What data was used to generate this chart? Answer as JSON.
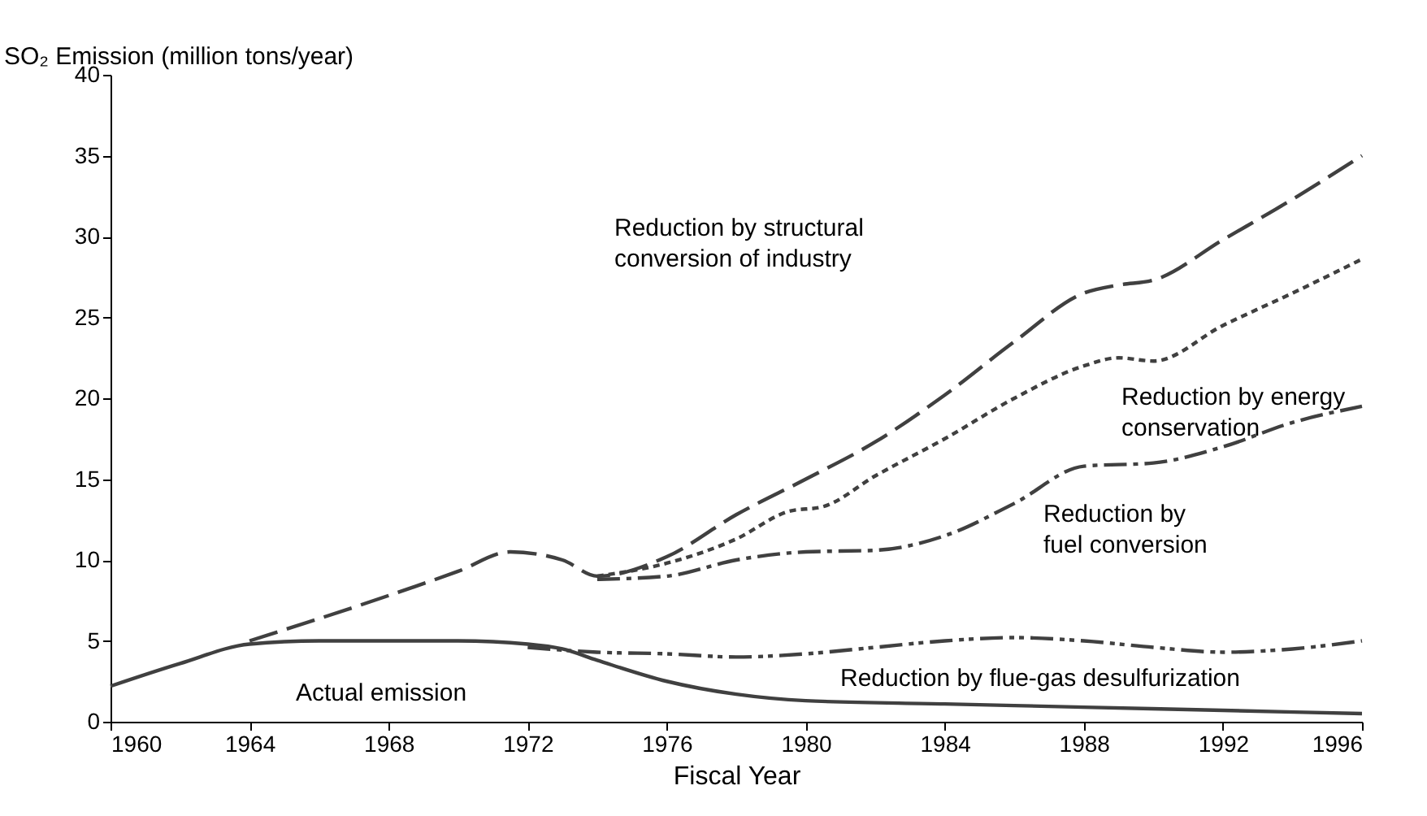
{
  "chart_data": {
    "type": "line",
    "ylabel": "SO₂ Emission (million tons/year)",
    "xlabel": "Fiscal Year",
    "xlim": [
      1960,
      1996
    ],
    "xticks": [
      1960,
      1964,
      1968,
      1972,
      1976,
      1980,
      1984,
      1988,
      1992,
      1996
    ],
    "ylim": [
      0,
      40
    ],
    "yticks": [
      0,
      5,
      10,
      15,
      20,
      25,
      30,
      35,
      40
    ],
    "grid": false,
    "marker": "none",
    "series": [
      {
        "color": "#404040",
        "line_style": "dashed",
        "x": [
          1964,
          1968,
          1970,
          1971.5,
          1973,
          1974,
          1976,
          1978,
          1980,
          1982,
          1984,
          1986,
          1988,
          1989,
          1990,
          1992,
          1994,
          1996
        ],
        "values": [
          5.0,
          7.8,
          9.3,
          10.5,
          10.0,
          9.0,
          10.2,
          12.8,
          15.0,
          17.3,
          20.2,
          23.5,
          26.5,
          27.0,
          27.3,
          29.8,
          32.3,
          35.0
        ]
      },
      {
        "color": "#404040",
        "line_style": "dotted",
        "x": [
          1974,
          1976,
          1978,
          1979.5,
          1980.5,
          1982,
          1984,
          1986,
          1988,
          1989,
          1990,
          1992,
          1994,
          1996
        ],
        "values": [
          9.0,
          9.8,
          11.3,
          13.0,
          13.3,
          15.2,
          17.5,
          20.0,
          22.0,
          22.5,
          22.3,
          24.5,
          26.5,
          28.6
        ]
      },
      {
        "color": "#404040",
        "line_style": "dashdot",
        "x": [
          1974,
          1976,
          1978,
          1980,
          1982,
          1984,
          1986,
          1988,
          1990,
          1992,
          1994,
          1996
        ],
        "values": [
          8.8,
          9.0,
          10.0,
          10.5,
          10.6,
          11.5,
          13.5,
          15.8,
          16.0,
          17.0,
          18.5,
          19.5
        ]
      },
      {
        "color": "#404040",
        "line_style": "dashdotdot",
        "x": [
          1972,
          1974,
          1976,
          1978,
          1980,
          1982,
          1984,
          1986,
          1988,
          1990,
          1992,
          1994,
          1996
        ],
        "values": [
          4.6,
          4.3,
          4.2,
          4.0,
          4.2,
          4.6,
          5.0,
          5.2,
          5.0,
          4.6,
          4.3,
          4.5,
          5.0
        ]
      },
      {
        "color": "#404040",
        "line_style": "solid",
        "x": [
          1960,
          1962,
          1964,
          1966,
          1968,
          1970,
          1972,
          1973,
          1974,
          1976,
          1978,
          1980,
          1984,
          1988,
          1992,
          1996
        ],
        "values": [
          2.2,
          3.6,
          4.8,
          5.0,
          5.0,
          5.0,
          4.8,
          4.5,
          3.8,
          2.5,
          1.7,
          1.3,
          1.1,
          0.9,
          0.7,
          0.5
        ]
      }
    ],
    "annotations": [
      "Reduction by structural\nconversion of industry",
      "Reduction by energy\nconservation",
      "Reduction by\nfuel conversion",
      "Reduction by flue-gas desulfurization",
      "Actual emission"
    ]
  }
}
